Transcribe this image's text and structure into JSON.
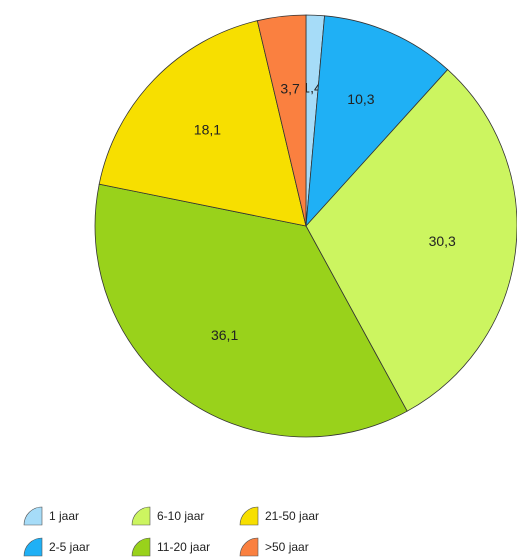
{
  "chart_data": {
    "type": "pie",
    "categories": [
      "1 jaar",
      "2-5 jaar",
      "6-10 jaar",
      "11-20 jaar",
      "21-50 jaar",
      ">50 jaar"
    ],
    "values": [
      1.4,
      10.3,
      30.3,
      36.1,
      18.1,
      3.7
    ],
    "value_labels": [
      "1,4",
      "10,3",
      "30,3",
      "36,1",
      "18,1",
      "3,7"
    ],
    "colors": [
      "#a6dcf8",
      "#1fb0f5",
      "#ccf560",
      "#99d21b",
      "#f7df00",
      "#fa8040"
    ]
  }
}
